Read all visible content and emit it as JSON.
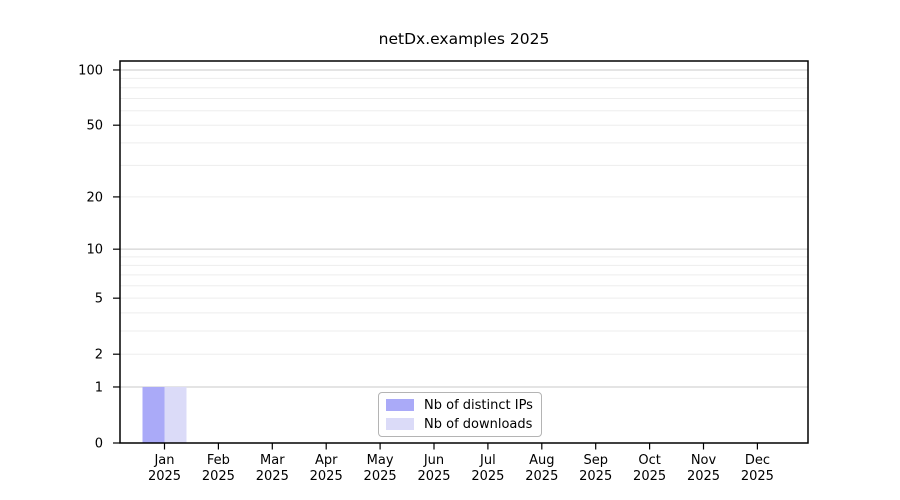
{
  "chart_data": {
    "type": "bar",
    "title": "netDx.examples 2025",
    "categories": [
      {
        "month": "Jan",
        "year": "2025"
      },
      {
        "month": "Feb",
        "year": "2025"
      },
      {
        "month": "Mar",
        "year": "2025"
      },
      {
        "month": "Apr",
        "year": "2025"
      },
      {
        "month": "May",
        "year": "2025"
      },
      {
        "month": "Jun",
        "year": "2025"
      },
      {
        "month": "Jul",
        "year": "2025"
      },
      {
        "month": "Aug",
        "year": "2025"
      },
      {
        "month": "Sep",
        "year": "2025"
      },
      {
        "month": "Oct",
        "year": "2025"
      },
      {
        "month": "Nov",
        "year": "2025"
      },
      {
        "month": "Dec",
        "year": "2025"
      }
    ],
    "series": [
      {
        "name": "Nb of distinct IPs",
        "color": "#aaaaf8",
        "values": [
          1,
          0,
          0,
          0,
          0,
          0,
          0,
          0,
          0,
          0,
          0,
          0
        ]
      },
      {
        "name": "Nb of downloads",
        "color": "#dbdbf8",
        "values": [
          1,
          0,
          0,
          0,
          0,
          0,
          0,
          0,
          0,
          0,
          0,
          0
        ]
      }
    ],
    "xlabel": "",
    "ylabel": "",
    "y_axis": {
      "scale": "log1p",
      "ticks": [
        0,
        1,
        2,
        5,
        10,
        20,
        50,
        100
      ],
      "range": [
        0,
        112
      ]
    },
    "gridlines": {
      "major": [
        1,
        10,
        100
      ],
      "minor": [
        2,
        3,
        4,
        5,
        6,
        7,
        8,
        9,
        20,
        30,
        40,
        50,
        60,
        70,
        80,
        90
      ],
      "major_color": "#c9c9c9",
      "minor_color": "#ededed"
    },
    "legend": {
      "position": "bottom-center-inside",
      "border_color": "#b4b4b4",
      "background": "#ffffff"
    },
    "colors": {
      "background": "#ffffff",
      "spine": "#000000",
      "text": "#000000"
    }
  }
}
